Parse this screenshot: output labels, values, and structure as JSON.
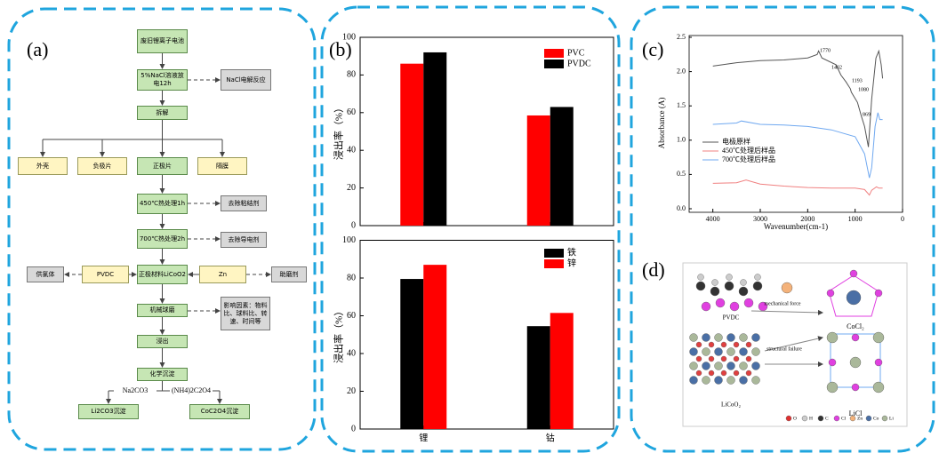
{
  "panel_labels": [
    "(a)",
    "(b)",
    "(c)",
    "(d)"
  ],
  "flowchart": {
    "nodes": [
      "废旧锂离子电池",
      "5%NaCl溶液放电12h",
      "拆解",
      "外壳",
      "负极片",
      "正极片",
      "隔膜",
      "450℃热处理1h",
      "700℃热处理2h",
      "正极材料LiCoO2",
      "机械球磨",
      "浸出",
      "化学沉淀",
      "Li2CO3沉淀",
      "CoC2O4沉淀",
      "NaCl电解反应",
      "去除粘结剂",
      "去除导电剂",
      "PVDC",
      "供氯体",
      "Zn",
      "助磨剂",
      "影响因素：物料比、球料比、转速、时间等"
    ],
    "edge_labels": [
      "Na2CO3",
      "(NH4)2C2O4"
    ]
  },
  "chart_data": [
    {
      "type": "bar",
      "y_label": "浸出率（%）",
      "categories": [
        null,
        null
      ],
      "series": [
        {
          "name": "PVC",
          "color": "#ff0000",
          "values": [
            86,
            58.5
          ]
        },
        {
          "name": "PVDC",
          "color": "#000000",
          "values": [
            92,
            63
          ]
        }
      ],
      "ylim": [
        0,
        100
      ],
      "yticks": [
        0,
        20,
        40,
        60,
        80,
        100
      ],
      "legend": "upper right"
    },
    {
      "type": "bar",
      "y_label": "浸出率（%）",
      "categories": [
        "锂",
        "钴"
      ],
      "series": [
        {
          "name": "铁",
          "color": "#000000",
          "values": [
            79.5,
            54.5
          ]
        },
        {
          "name": "锌",
          "color": "#ff0000",
          "values": [
            87,
            61.5
          ]
        }
      ],
      "ylim": [
        0,
        100
      ],
      "yticks": [
        0,
        20,
        40,
        60,
        80,
        100
      ],
      "legend": "upper right"
    },
    {
      "type": "line",
      "x_label": "Wavenumber(cm-1)",
      "y_label": "Absorbance (A)",
      "xlim": [
        4500,
        0
      ],
      "xticks": [
        4000,
        3000,
        2000,
        1000,
        0
      ],
      "ylim": [
        0,
        2.5
      ],
      "yticks": [
        {
          "value": 0,
          "label": "0.0"
        },
        0.5,
        {
          "value": 1,
          "label": "1.0"
        },
        1.5,
        {
          "value": 2,
          "label": "2.0"
        },
        2.5
      ],
      "series": [
        {
          "name": "电极原样",
          "color": "#555555",
          "x": [
            4000,
            3500,
            3000,
            2500,
            2000,
            1800,
            1770,
            1700,
            1402,
            1300,
            1193,
            1100,
            1080,
            950,
            869,
            800,
            720,
            650,
            560,
            500,
            450,
            420
          ],
          "values": [
            2.08,
            2.13,
            2.16,
            2.17,
            2.2,
            2.25,
            2.3,
            2.2,
            2.1,
            1.95,
            1.85,
            1.75,
            1.7,
            1.55,
            1.35,
            1.2,
            0.9,
            1.6,
            2.2,
            2.3,
            2.1,
            1.9
          ]
        },
        {
          "name": "450℃处理后样品",
          "color": "#f08080",
          "x": [
            4000,
            3500,
            3300,
            3000,
            2500,
            2000,
            1500,
            1000,
            800,
            700,
            650,
            550,
            500,
            420
          ],
          "values": [
            0.37,
            0.38,
            0.42,
            0.36,
            0.33,
            0.31,
            0.3,
            0.3,
            0.28,
            0.2,
            0.27,
            0.32,
            0.3,
            0.3
          ]
        },
        {
          "name": "700℃处理后样品",
          "color": "#6fa8f0",
          "x": [
            4000,
            3500,
            3400,
            3000,
            2500,
            2000,
            1500,
            1000,
            800,
            700,
            650,
            580,
            520,
            480,
            420
          ],
          "values": [
            1.23,
            1.25,
            1.28,
            1.23,
            1.22,
            1.2,
            1.15,
            1.05,
            0.8,
            0.45,
            0.6,
            1.2,
            1.4,
            1.3,
            1.3
          ]
        }
      ],
      "annotations": [
        "1770",
        "1402",
        "1193",
        "1080",
        "869"
      ],
      "legend": "center left"
    }
  ],
  "diagram": {
    "labels": [
      "PVDC",
      "mechanical force",
      "structural failure",
      "CoCl₂",
      "LiCl",
      "LiCoO₂"
    ],
    "legend": [
      "O",
      "H",
      "C",
      "Cl",
      "Zn",
      "Co",
      "Li"
    ]
  }
}
